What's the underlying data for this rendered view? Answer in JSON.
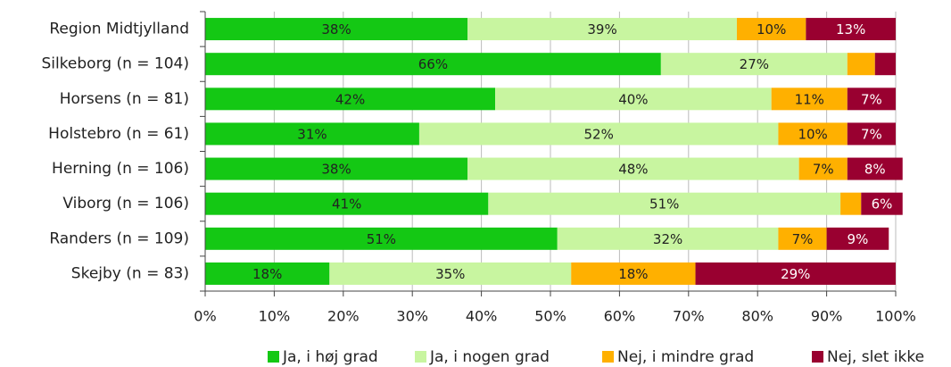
{
  "chart_data": {
    "type": "stacked-barh",
    "categories": [
      "Region Midtjylland",
      "Silkeborg (n = 104)",
      "Horsens (n = 81)",
      "Holstebro (n = 61)",
      "Herning (n = 106)",
      "Viborg (n = 106)",
      "Randers (n = 109)",
      "Skejby (n = 83)"
    ],
    "series": [
      {
        "name": "Ja, i høj grad",
        "color": "#14c814",
        "values": [
          38,
          66,
          42,
          31,
          38,
          41,
          51,
          18
        ],
        "value_labels": [
          "38%",
          "66%",
          "42%",
          "31%",
          "38%",
          "41%",
          "51%",
          "18%"
        ]
      },
      {
        "name": "Ja, i nogen grad",
        "color": "#c8f5a0",
        "values": [
          39,
          27,
          40,
          52,
          48,
          51,
          32,
          35
        ],
        "value_labels": [
          "39%",
          "27%",
          "40%",
          "52%",
          "48%",
          "51%",
          "32%",
          "35%"
        ]
      },
      {
        "name": "Nej, i mindre grad",
        "color": "#ffb000",
        "values": [
          10,
          4,
          11,
          10,
          7,
          3,
          7,
          18
        ],
        "value_labels": [
          "10%",
          null,
          "11%",
          "10%",
          "7%",
          null,
          "7%",
          "18%"
        ]
      },
      {
        "name": "Nej, slet ikke",
        "color": "#990030",
        "values": [
          13,
          3,
          7,
          7,
          8,
          6,
          9,
          29
        ],
        "value_labels": [
          "13%",
          null,
          "7%",
          "7%",
          "8%",
          "6%",
          "9%",
          "29%"
        ]
      }
    ],
    "xlim": [
      0,
      100
    ],
    "xticks": [
      {
        "value": 0,
        "label": "0%"
      },
      {
        "value": 10,
        "label": "10%"
      },
      {
        "value": 20,
        "label": "20%"
      },
      {
        "value": 30,
        "label": "30%"
      },
      {
        "value": 40,
        "label": "40%"
      },
      {
        "value": 50,
        "label": "50%"
      },
      {
        "value": 60,
        "label": "60%"
      },
      {
        "value": 70,
        "label": "70%"
      },
      {
        "value": 80,
        "label": "80%"
      },
      {
        "value": 90,
        "label": "90%"
      },
      {
        "value": 100,
        "label": "100%"
      }
    ],
    "grid": true,
    "legend": "bottom-right"
  }
}
